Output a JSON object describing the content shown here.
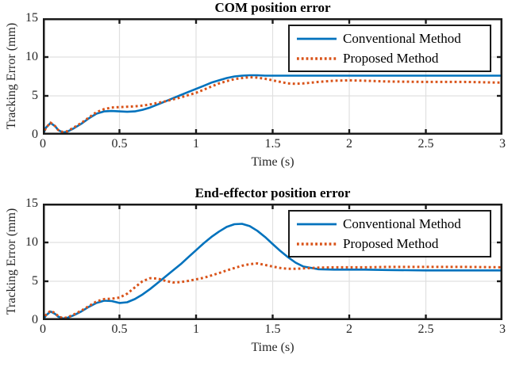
{
  "figure": {
    "background": "#ffffff"
  },
  "colors": {
    "conventional": "#0072BD",
    "proposed": "#D95319",
    "grid": "#e0e0e0",
    "axis": "#1a1a1a",
    "text": "#262626"
  },
  "chart_data": [
    {
      "type": "line",
      "title": "COM position error",
      "xlabel": "Time (s)",
      "ylabel": "Tracking Error (mm)",
      "xlim": [
        0,
        3
      ],
      "ylim": [
        0,
        15
      ],
      "xticks": [
        0,
        0.5,
        1,
        1.5,
        2,
        2.5,
        3
      ],
      "xtick_labels": [
        "0",
        "0.5",
        "1",
        "1.5",
        "2",
        "2.5",
        "3"
      ],
      "yticks": [
        0,
        5,
        10,
        15
      ],
      "ytick_labels": [
        "0",
        "5",
        "10",
        "15"
      ],
      "grid": true,
      "grid_color": "#e0e0e0",
      "axis_color": "#1a1a1a",
      "legend_position": "top-right",
      "x": [
        0,
        0.02,
        0.05,
        0.08,
        0.1,
        0.13,
        0.16,
        0.2,
        0.25,
        0.3,
        0.35,
        0.4,
        0.45,
        0.5,
        0.55,
        0.6,
        0.65,
        0.7,
        0.75,
        0.8,
        0.85,
        0.9,
        0.95,
        1.0,
        1.05,
        1.1,
        1.15,
        1.2,
        1.25,
        1.3,
        1.35,
        1.4,
        1.45,
        1.5,
        1.55,
        1.6,
        1.65,
        1.7,
        1.8,
        1.9,
        2.0,
        2.1,
        2.25,
        2.5,
        2.75,
        3.0
      ],
      "series": [
        {
          "name": "Conventional Method",
          "color": "#0072BD",
          "line_style": "solid",
          "line_width": 2.6,
          "y": [
            0,
            0.9,
            1.5,
            1.1,
            0.6,
            0.3,
            0.4,
            0.8,
            1.4,
            2.1,
            2.7,
            3.0,
            3.05,
            3.0,
            2.95,
            3.0,
            3.2,
            3.5,
            3.9,
            4.3,
            4.7,
            5.1,
            5.5,
            5.9,
            6.3,
            6.7,
            7.0,
            7.3,
            7.5,
            7.6,
            7.65,
            7.65,
            7.6,
            7.6,
            7.6,
            7.6,
            7.6,
            7.6,
            7.6,
            7.6,
            7.6,
            7.6,
            7.6,
            7.6,
            7.6,
            7.6
          ]
        },
        {
          "name": "Proposed Method",
          "color": "#D95319",
          "line_style": "dotted",
          "line_width": 3,
          "y": [
            0,
            0.9,
            1.55,
            1.1,
            0.6,
            0.35,
            0.45,
            0.9,
            1.5,
            2.2,
            2.9,
            3.3,
            3.5,
            3.55,
            3.6,
            3.65,
            3.75,
            3.9,
            4.1,
            4.3,
            4.55,
            4.8,
            5.1,
            5.4,
            5.8,
            6.2,
            6.6,
            6.9,
            7.15,
            7.3,
            7.4,
            7.35,
            7.2,
            7.0,
            6.8,
            6.6,
            6.55,
            6.6,
            6.8,
            6.95,
            7.0,
            6.95,
            6.85,
            6.8,
            6.8,
            6.7
          ]
        }
      ]
    },
    {
      "type": "line",
      "title": "End-effector position error",
      "xlabel": "Time (s)",
      "ylabel": "Tracking Error (mm)",
      "xlim": [
        0,
        3
      ],
      "ylim": [
        0,
        15
      ],
      "xticks": [
        0,
        0.5,
        1,
        1.5,
        2,
        2.5,
        3
      ],
      "xtick_labels": [
        "0",
        "0.5",
        "1",
        "1.5",
        "2",
        "2.5",
        "3"
      ],
      "yticks": [
        0,
        5,
        10,
        15
      ],
      "ytick_labels": [
        "0",
        "5",
        "10",
        "15"
      ],
      "grid": true,
      "grid_color": "#e0e0e0",
      "axis_color": "#1a1a1a",
      "legend_position": "top-right",
      "x": [
        0,
        0.02,
        0.05,
        0.08,
        0.1,
        0.13,
        0.16,
        0.2,
        0.25,
        0.3,
        0.35,
        0.4,
        0.45,
        0.5,
        0.55,
        0.6,
        0.65,
        0.7,
        0.75,
        0.8,
        0.85,
        0.9,
        0.95,
        1.0,
        1.05,
        1.1,
        1.15,
        1.2,
        1.25,
        1.3,
        1.35,
        1.4,
        1.45,
        1.5,
        1.55,
        1.6,
        1.65,
        1.7,
        1.8,
        1.9,
        2.0,
        2.1,
        2.25,
        2.5,
        2.75,
        3.0
      ],
      "series": [
        {
          "name": "Conventional Method",
          "color": "#0072BD",
          "line_style": "solid",
          "line_width": 2.6,
          "y": [
            0,
            0.6,
            1.1,
            0.8,
            0.45,
            0.2,
            0.3,
            0.6,
            1.1,
            1.7,
            2.2,
            2.5,
            2.45,
            2.2,
            2.3,
            2.7,
            3.3,
            4.0,
            4.8,
            5.6,
            6.4,
            7.2,
            8.1,
            9.0,
            9.9,
            10.7,
            11.4,
            12.0,
            12.35,
            12.4,
            12.1,
            11.5,
            10.7,
            9.8,
            8.9,
            8.1,
            7.4,
            6.9,
            6.55,
            6.5,
            6.5,
            6.5,
            6.45,
            6.4,
            6.4,
            6.4
          ]
        },
        {
          "name": "Proposed Method",
          "color": "#D95319",
          "line_style": "dotted",
          "line_width": 3,
          "y": [
            0,
            0.65,
            1.2,
            0.9,
            0.5,
            0.25,
            0.35,
            0.7,
            1.2,
            1.8,
            2.4,
            2.7,
            2.75,
            2.9,
            3.4,
            4.2,
            5.0,
            5.4,
            5.35,
            5.05,
            4.85,
            4.9,
            5.05,
            5.25,
            5.45,
            5.75,
            6.05,
            6.4,
            6.7,
            7.0,
            7.2,
            7.3,
            7.1,
            6.9,
            6.7,
            6.6,
            6.6,
            6.65,
            6.75,
            6.8,
            6.8,
            6.8,
            6.85,
            6.85,
            6.85,
            6.8
          ]
        }
      ]
    }
  ]
}
